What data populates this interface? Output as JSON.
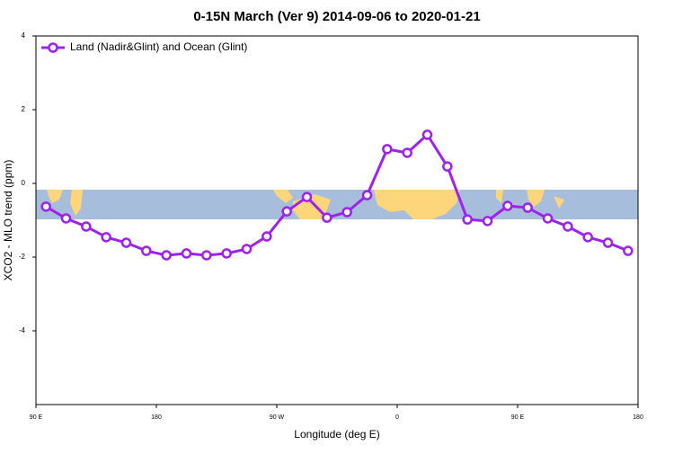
{
  "chart_data": {
    "type": "line",
    "title": "0-15N March (Ver 9)   2014-09-06 to 2020-01-21",
    "xlabel": "Longitude (deg E)",
    "ylabel": "XCO2 - MLO trend (ppm)",
    "x": [
      97.5,
      112.5,
      127.5,
      142.5,
      157.5,
      172.5,
      187.5,
      202.5,
      217.5,
      232.5,
      247.5,
      262.5,
      277.5,
      292.5,
      307.5,
      322.5,
      337.5,
      352.5,
      367.5,
      382.5,
      397.5,
      412.5,
      427.5,
      442.5,
      457.5,
      472.5,
      487.5,
      502.5,
      517.5,
      532.5
    ],
    "series": [
      {
        "name": "Land (Nadir&Glint) and Ocean (Glint)",
        "color": "#a020f0",
        "values": [
          -0.63,
          -0.95,
          -1.17,
          -1.46,
          -1.61,
          -1.83,
          -1.95,
          -1.9,
          -1.95,
          -1.9,
          -1.78,
          -1.44,
          -0.76,
          -0.37,
          -0.93,
          -0.78,
          -0.32,
          0.93,
          0.83,
          1.32,
          0.46,
          -0.98,
          -1.02,
          -0.61,
          -0.66,
          -0.95,
          -1.17,
          -1.46,
          -1.61,
          -1.83
        ]
      }
    ],
    "xlim": [
      90,
      540
    ],
    "xticks": [
      {
        "value": 90,
        "label": "90 E"
      },
      {
        "value": 180,
        "label": "180"
      },
      {
        "value": 270,
        "label": "90 W"
      },
      {
        "value": 360,
        "label": "0"
      },
      {
        "value": 450,
        "label": "90 E"
      },
      {
        "value": 540,
        "label": "180"
      }
    ],
    "ylim": [
      -6,
      4
    ],
    "yticks": [
      -4,
      -2,
      0,
      2,
      4
    ],
    "legend": "top-left"
  }
}
